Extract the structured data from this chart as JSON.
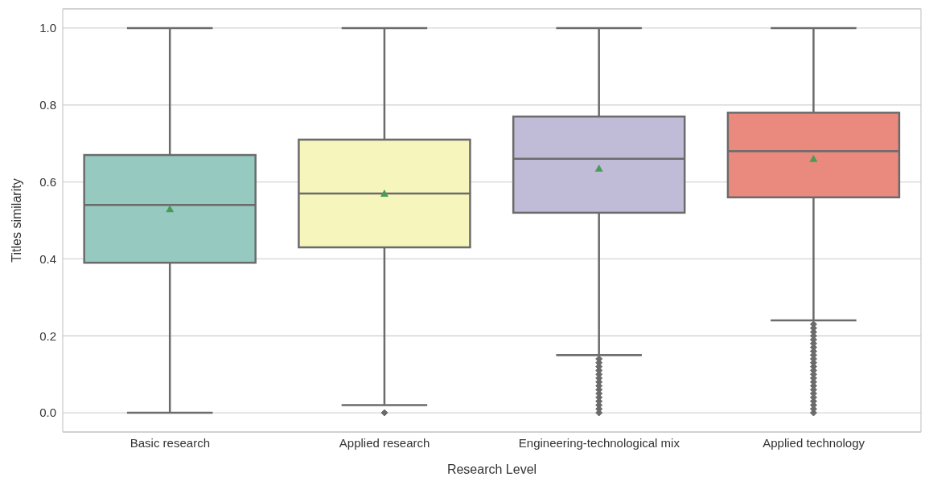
{
  "chart_data": {
    "type": "box",
    "xlabel": "Research Level",
    "ylabel": "Titles similarity",
    "categories": [
      "Basic research",
      "Applied research",
      "Engineering-technological mix",
      "Applied technology"
    ],
    "colors": [
      "#96cac1",
      "#f6f6bc",
      "#c0bcd8",
      "#ea8a7f"
    ],
    "boxes": [
      {
        "low": 0,
        "q1": 0.39,
        "median": 0.54,
        "q3": 0.67,
        "high": 1,
        "mean": 0.53
      },
      {
        "low": 0.02,
        "q1": 0.43,
        "median": 0.57,
        "q3": 0.71,
        "high": 1,
        "mean": 0.57,
        "outliers": [
          0
        ]
      },
      {
        "low": 0.15,
        "q1": 0.52,
        "median": 0.66,
        "q3": 0.77,
        "high": 1,
        "mean": 0.635,
        "outliers": [
          0,
          0.01,
          0.02,
          0.03,
          0.04,
          0.05,
          0.06,
          0.07,
          0.08,
          0.09,
          0.1,
          0.11,
          0.12,
          0.13,
          0.14
        ]
      },
      {
        "low": 0.24,
        "q1": 0.56,
        "median": 0.68,
        "q3": 0.78,
        "high": 1,
        "mean": 0.66,
        "outliers": [
          0,
          0.01,
          0.02,
          0.03,
          0.04,
          0.05,
          0.06,
          0.07,
          0.08,
          0.09,
          0.1,
          0.11,
          0.12,
          0.13,
          0.14,
          0.15,
          0.16,
          0.17,
          0.18,
          0.19,
          0.2,
          0.21,
          0.22,
          0.23
        ]
      }
    ],
    "ylim": [
      -0.05,
      1.05
    ],
    "yticks": [
      {
        "value": 0,
        "label": "0.0"
      },
      {
        "value": 0.2,
        "label": "0.2"
      },
      {
        "value": 0.4,
        "label": "0.4"
      },
      {
        "value": 0.6,
        "label": "0.6"
      },
      {
        "value": 0.8,
        "label": "0.8"
      },
      {
        "value": 1,
        "label": "1.0"
      }
    ],
    "grid": "y"
  }
}
